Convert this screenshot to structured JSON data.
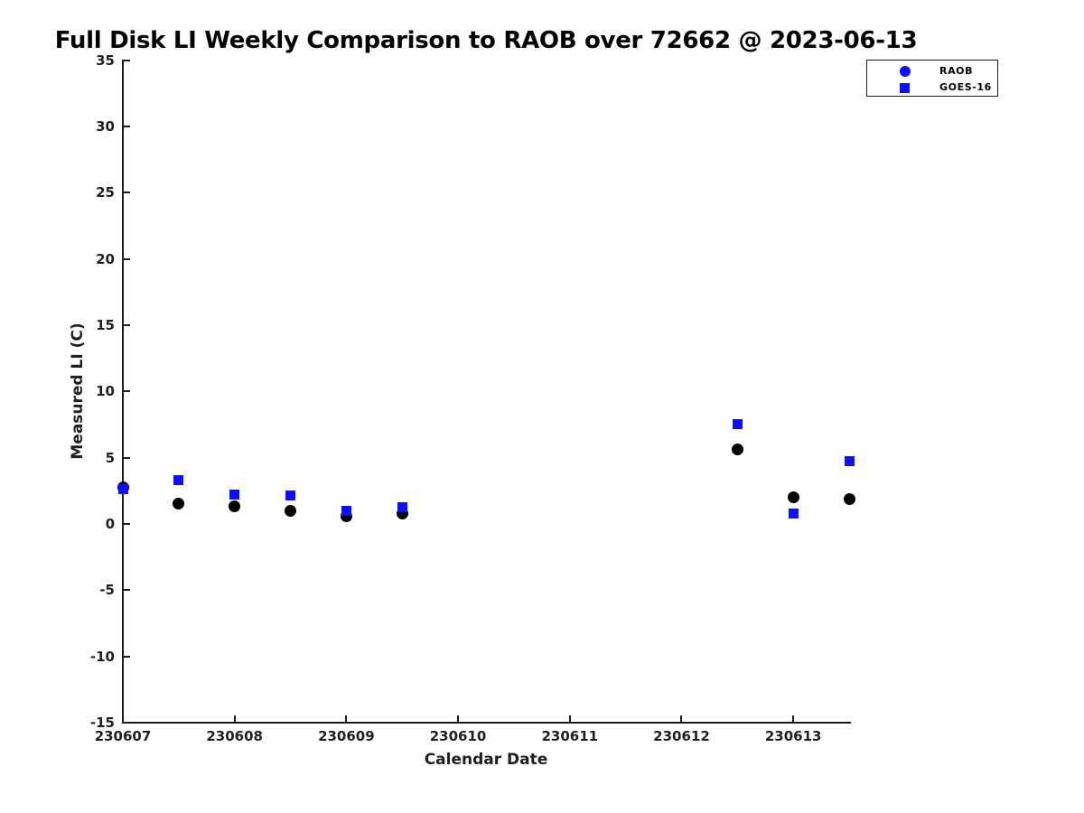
{
  "figure": {
    "background": "#ffffff",
    "axis_color": "#1a1a1a",
    "label_color": "#1f1f1f",
    "raob_plot_marker_color": "#000000",
    "goes_marker_color": "#0d0dff"
  },
  "chart_data": {
    "type": "scatter",
    "title": "Full Disk LI Weekly Comparison to RAOB over 72662 @ 2023-06-13",
    "xlabel": "Calendar Date",
    "ylabel": "Measured LI (C)",
    "xlim": [
      230607,
      230613.5
    ],
    "ylim": [
      -15,
      35
    ],
    "x_ticks": [
      230607,
      230608,
      230609,
      230610,
      230611,
      230612,
      230613
    ],
    "y_ticks": [
      -15,
      -10,
      -5,
      0,
      5,
      10,
      15,
      20,
      25,
      30,
      35
    ],
    "grid": false,
    "legend_position": "top-right",
    "series": [
      {
        "name": "RAOB",
        "marker": "circle",
        "plot_color": "#000000",
        "legend_color": "#0d0dff",
        "x": [
          230607,
          230607.5,
          230608,
          230608.5,
          230609,
          230609.5,
          230612.5,
          230613,
          230613.5
        ],
        "y": [
          2.75,
          1.55,
          1.3,
          1.0,
          0.55,
          0.8,
          5.65,
          2.0,
          1.9
        ]
      },
      {
        "name": "GOES-16",
        "marker": "square",
        "plot_color": "#0d0dff",
        "legend_color": "#0d0dff",
        "x": [
          230607,
          230607.5,
          230608,
          230608.5,
          230609,
          230609.5,
          230612.5,
          230613,
          230613.5
        ],
        "y": [
          2.6,
          3.3,
          2.2,
          2.15,
          1.0,
          1.25,
          7.55,
          0.75,
          4.75
        ]
      }
    ],
    "legend": {
      "entries": [
        {
          "label": "RAOB",
          "marker": "circle"
        },
        {
          "label": "GOES-16",
          "marker": "square"
        }
      ]
    }
  }
}
